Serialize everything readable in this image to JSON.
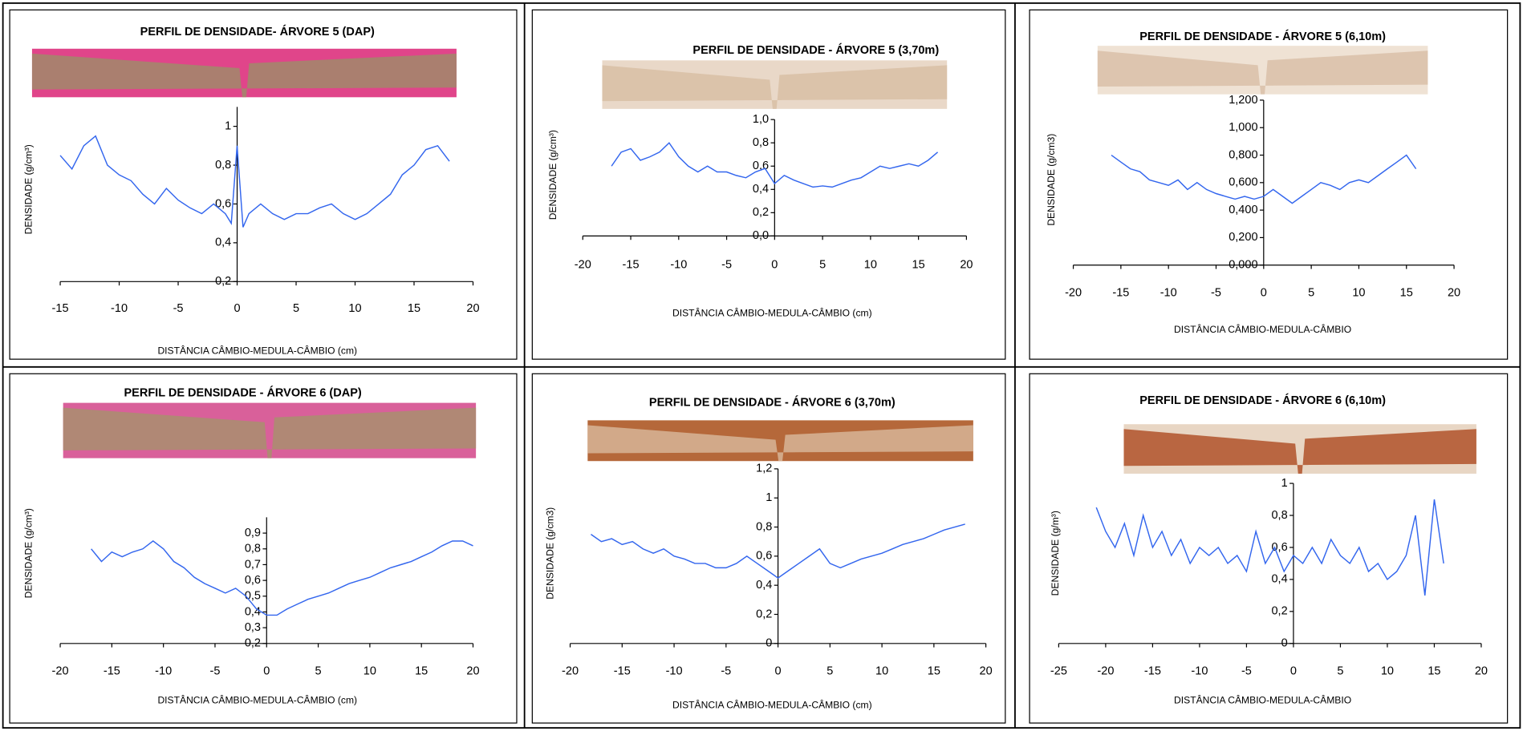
{
  "chart_data": [
    {
      "type": "line",
      "title": "PERFIL DE DENSIDADE- ÁRVORE 5 (DAP)",
      "y_label": "DENSIDADE  (g/cm³)",
      "x_label": "DISTÂNCIA CÂMBIO-MEDULA-CÂMBIO (cm)",
      "xlim": [
        -15,
        20
      ],
      "xticks": [
        -15,
        -10,
        -5,
        0,
        5,
        10,
        15,
        20
      ],
      "ylim": [
        0.2,
        1.1
      ],
      "yticks": [
        {
          "value": 0.2,
          "label": "0,2"
        },
        {
          "value": 0.4,
          "label": "0,4"
        },
        {
          "value": 0.6,
          "label": "0,6"
        },
        {
          "value": 0.8,
          "label": "0,8"
        },
        1
      ],
      "color": "#3366ee",
      "x": [
        -15,
        -14,
        -13,
        -12,
        -11,
        -10,
        -9,
        -8,
        -7,
        -6,
        -5,
        -4,
        -3,
        -2,
        -1,
        -0.5,
        0,
        0.5,
        1,
        2,
        3,
        4,
        5,
        6,
        7,
        8,
        9,
        10,
        11,
        12,
        13,
        14,
        15,
        16,
        17,
        18
      ],
      "values": [
        0.85,
        0.78,
        0.9,
        0.95,
        0.8,
        0.75,
        0.72,
        0.65,
        0.6,
        0.68,
        0.62,
        0.58,
        0.55,
        0.6,
        0.55,
        0.5,
        0.9,
        0.48,
        0.55,
        0.6,
        0.55,
        0.52,
        0.55,
        0.55,
        0.58,
        0.6,
        0.55,
        0.52,
        0.55,
        0.6,
        0.65,
        0.75,
        0.8,
        0.88,
        0.9,
        0.82
      ]
    },
    {
      "type": "line",
      "title": "PERFIL DE DENSIDADE - ÁRVORE 5 (3,70m)",
      "y_label": "DENSIDADE  (g/cm³)",
      "x_label": "DISTÂNCIA CÂMBIO-MEDULA-CÂMBIO (cm)",
      "xlim": [
        -20,
        20
      ],
      "xticks": [
        -20,
        -15,
        -10,
        -5,
        0,
        5,
        10,
        15,
        20
      ],
      "ylim": [
        0,
        1
      ],
      "yticks": [
        {
          "value": 0,
          "label": "0,0"
        },
        {
          "value": 0.2,
          "label": "0,2"
        },
        {
          "value": 0.4,
          "label": "0,4"
        },
        {
          "value": 0.6,
          "label": "0,6"
        },
        {
          "value": 0.8,
          "label": "0,8"
        },
        {
          "value": 1,
          "label": "1,0"
        }
      ],
      "color": "#3366ee",
      "x": [
        -17,
        -16,
        -15,
        -14,
        -13,
        -12,
        -11,
        -10,
        -9,
        -8,
        -7,
        -6,
        -5,
        -4,
        -3,
        -2,
        -1,
        0,
        1,
        2,
        3,
        4,
        5,
        6,
        7,
        8,
        9,
        10,
        11,
        12,
        13,
        14,
        15,
        16,
        17
      ],
      "values": [
        0.6,
        0.72,
        0.75,
        0.65,
        0.68,
        0.72,
        0.8,
        0.68,
        0.6,
        0.55,
        0.6,
        0.55,
        0.55,
        0.52,
        0.5,
        0.55,
        0.58,
        0.45,
        0.52,
        0.48,
        0.45,
        0.42,
        0.43,
        0.42,
        0.45,
        0.48,
        0.5,
        0.55,
        0.6,
        0.58,
        0.6,
        0.62,
        0.6,
        0.65,
        0.72
      ]
    },
    {
      "type": "line",
      "title": "PERFIL DE DENSIDADE - ÁRVORE 5 (6,10m)",
      "y_label": "DENSIDADE  (g/cm3)",
      "x_label": "DISTÂNCIA CÂMBIO-MEDULA-CÂMBIO",
      "xlim": [
        -20,
        20
      ],
      "xticks": [
        -20,
        -15,
        -10,
        -5,
        0,
        5,
        10,
        15,
        20
      ],
      "ylim": [
        0,
        1.2
      ],
      "yticks": [
        {
          "value": 0,
          "label": "0,000"
        },
        {
          "value": 0.2,
          "label": "0,200"
        },
        {
          "value": 0.4,
          "label": "0,400"
        },
        {
          "value": 0.6,
          "label": "0,600"
        },
        {
          "value": 0.8,
          "label": "0,800"
        },
        {
          "value": 1,
          "label": "1,000"
        },
        {
          "value": 1.2,
          "label": "1,200"
        }
      ],
      "color": "#3366ee",
      "x": [
        -16,
        -15,
        -14,
        -13,
        -12,
        -11,
        -10,
        -9,
        -8,
        -7,
        -6,
        -5,
        -4,
        -3,
        -2,
        -1,
        0,
        1,
        2,
        3,
        4,
        5,
        6,
        7,
        8,
        9,
        10,
        11,
        12,
        13,
        14,
        15,
        16
      ],
      "values": [
        0.8,
        0.75,
        0.7,
        0.68,
        0.62,
        0.6,
        0.58,
        0.62,
        0.55,
        0.6,
        0.55,
        0.52,
        0.5,
        0.48,
        0.5,
        0.48,
        0.5,
        0.55,
        0.5,
        0.45,
        0.5,
        0.55,
        0.6,
        0.58,
        0.55,
        0.6,
        0.62,
        0.6,
        0.65,
        0.7,
        0.75,
        0.8,
        0.7
      ]
    },
    {
      "type": "line",
      "title": "PERFIL DE DENSIDADE - ÁRVORE 6 (DAP)",
      "y_label": "DENSIDADE  (g/cm³)",
      "x_label": "DISTÂNCIA CÂMBIO-MEDULA-CÂMBIO (cm)",
      "xlim": [
        -20,
        20
      ],
      "xticks": [
        -20,
        -15,
        -10,
        -5,
        0,
        5,
        10,
        15,
        20
      ],
      "ylim": [
        0.2,
        1.0
      ],
      "yticks": [
        {
          "value": 0.2,
          "label": "0,2"
        },
        {
          "value": 0.3,
          "label": "0,3"
        },
        {
          "value": 0.4,
          "label": "0,4"
        },
        {
          "value": 0.5,
          "label": "0,5"
        },
        {
          "value": 0.6,
          "label": "0,6"
        },
        {
          "value": 0.7,
          "label": "0,7"
        },
        {
          "value": 0.8,
          "label": "0,8"
        },
        {
          "value": 0.9,
          "label": "0,9"
        }
      ],
      "color": "#3366ee",
      "x": [
        -17,
        -16,
        -15,
        -14,
        -13,
        -12,
        -11,
        -10,
        -9,
        -8,
        -7,
        -6,
        -5,
        -4,
        -3,
        -2,
        -1,
        0,
        1,
        2,
        3,
        4,
        5,
        6,
        7,
        8,
        9,
        10,
        11,
        12,
        13,
        14,
        15,
        16,
        17,
        18,
        19,
        20
      ],
      "values": [
        0.8,
        0.72,
        0.78,
        0.75,
        0.78,
        0.8,
        0.85,
        0.8,
        0.72,
        0.68,
        0.62,
        0.58,
        0.55,
        0.52,
        0.55,
        0.5,
        0.42,
        0.38,
        0.38,
        0.42,
        0.45,
        0.48,
        0.5,
        0.52,
        0.55,
        0.58,
        0.6,
        0.62,
        0.65,
        0.68,
        0.7,
        0.72,
        0.75,
        0.78,
        0.82,
        0.85,
        0.85,
        0.82
      ]
    },
    {
      "type": "line",
      "title": "PERFIL DE DENSIDADE - ÁRVORE 6 (3,70m)",
      "y_label": "DENSIDADE  (g/cm3)",
      "x_label": "DISTÂNCIA CÂMBIO-MEDULA-CÂMBIO (cm)",
      "xlim": [
        -20,
        20
      ],
      "xticks": [
        -20,
        -15,
        -10,
        -5,
        0,
        5,
        10,
        15,
        20
      ],
      "ylim": [
        0,
        1.2
      ],
      "yticks": [
        0,
        {
          "value": 0.2,
          "label": "0,2"
        },
        {
          "value": 0.4,
          "label": "0,4"
        },
        {
          "value": 0.6,
          "label": "0,6"
        },
        {
          "value": 0.8,
          "label": "0,8"
        },
        1,
        {
          "value": 1.2,
          "label": "1,2"
        }
      ],
      "color": "#3366ee",
      "x": [
        -18,
        -17,
        -16,
        -15,
        -14,
        -13,
        -12,
        -11,
        -10,
        -9,
        -8,
        -7,
        -6,
        -5,
        -4,
        -3,
        -2,
        -1,
        0,
        1,
        2,
        3,
        4,
        5,
        6,
        7,
        8,
        9,
        10,
        11,
        12,
        13,
        14,
        15,
        16,
        17,
        18
      ],
      "values": [
        0.75,
        0.7,
        0.72,
        0.68,
        0.7,
        0.65,
        0.62,
        0.65,
        0.6,
        0.58,
        0.55,
        0.55,
        0.52,
        0.52,
        0.55,
        0.6,
        0.55,
        0.5,
        0.45,
        0.5,
        0.55,
        0.6,
        0.65,
        0.55,
        0.52,
        0.55,
        0.58,
        0.6,
        0.62,
        0.65,
        0.68,
        0.7,
        0.72,
        0.75,
        0.78,
        0.8,
        0.82
      ]
    },
    {
      "type": "line",
      "title": "PERFIL DE DENSIDADE - ÁRVORE 6 (6,10m)",
      "y_label": "DENSIDADE  (g/m³)",
      "x_label": "DISTÂNCIA CÂMBIO-MEDULA-CÂMBIO",
      "xlim": [
        -25,
        20
      ],
      "xticks": [
        -25,
        -20,
        -15,
        -10,
        -5,
        0,
        5,
        10,
        15,
        20
      ],
      "ylim": [
        0,
        1
      ],
      "yticks": [
        0,
        {
          "value": 0.2,
          "label": "0,2"
        },
        {
          "value": 0.4,
          "label": "0,4"
        },
        {
          "value": 0.6,
          "label": "0,6"
        },
        {
          "value": 0.8,
          "label": "0,8"
        },
        1
      ],
      "color": "#3366ee",
      "x": [
        -21,
        -20,
        -19,
        -18,
        -17,
        -16,
        -15,
        -14,
        -13,
        -12,
        -11,
        -10,
        -9,
        -8,
        -7,
        -6,
        -5,
        -4,
        -3,
        -2,
        -1,
        0,
        1,
        2,
        3,
        4,
        5,
        6,
        7,
        8,
        9,
        10,
        11,
        12,
        13,
        14,
        15,
        16
      ],
      "values": [
        0.85,
        0.7,
        0.6,
        0.75,
        0.55,
        0.8,
        0.6,
        0.7,
        0.55,
        0.65,
        0.5,
        0.6,
        0.55,
        0.6,
        0.5,
        0.55,
        0.45,
        0.7,
        0.5,
        0.6,
        0.45,
        0.55,
        0.5,
        0.6,
        0.5,
        0.65,
        0.55,
        0.5,
        0.6,
        0.45,
        0.5,
        0.4,
        0.45,
        0.55,
        0.8,
        0.3,
        0.9,
        0.5
      ]
    }
  ]
}
